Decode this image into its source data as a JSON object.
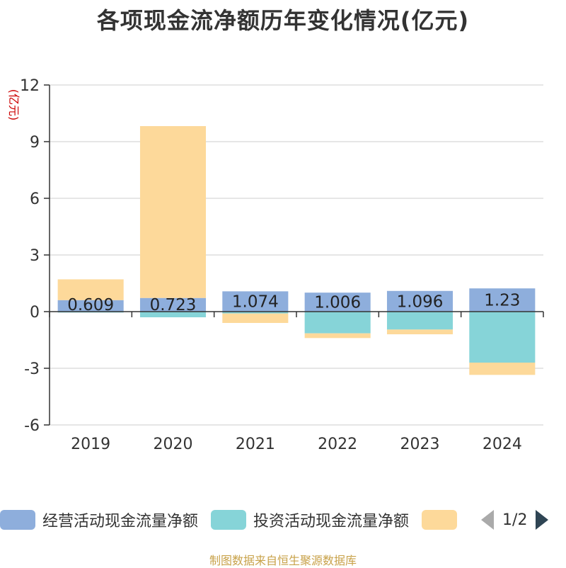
{
  "chart_data": {
    "type": "bar",
    "title": "各项现金流净额历年变化情况(亿元)",
    "ylabel": "(亿元)",
    "xlabel": "",
    "categories": [
      "2019",
      "2020",
      "2021",
      "2022",
      "2023",
      "2024"
    ],
    "ylim": [
      -6,
      12
    ],
    "yticks": [
      -6,
      -3,
      0,
      3,
      6,
      9,
      12
    ],
    "stacked": true,
    "grid": true,
    "legend_position": "bottom",
    "series": [
      {
        "name": "经营活动现金流量净额",
        "color": "#8eaedc",
        "values": [
          0.609,
          0.723,
          1.074,
          1.006,
          1.096,
          1.23
        ],
        "labels": [
          "0.609",
          "0.723",
          "1.074",
          "1.006",
          "1.096",
          "1.23"
        ]
      },
      {
        "name": "投资活动现金流量净额",
        "color": "#86d4d8",
        "values": [
          -0.05,
          -0.3,
          -0.1,
          -1.15,
          -0.95,
          -2.7
        ]
      },
      {
        "color": "#fdd99a",
        "values": [
          1.1,
          9.1,
          -0.5,
          -0.25,
          -0.25,
          -0.65
        ]
      }
    ]
  },
  "legend": {
    "items": [
      {
        "label": "经营活动现金流量净额",
        "color": "#8eaedc"
      },
      {
        "label": "投资活动现金流量净额",
        "color": "#86d4d8"
      },
      {
        "label": "",
        "color": "#fdd99a"
      }
    ],
    "page_indicator": "1/2"
  },
  "source_note": "制图数据来自恒生聚源数据库"
}
